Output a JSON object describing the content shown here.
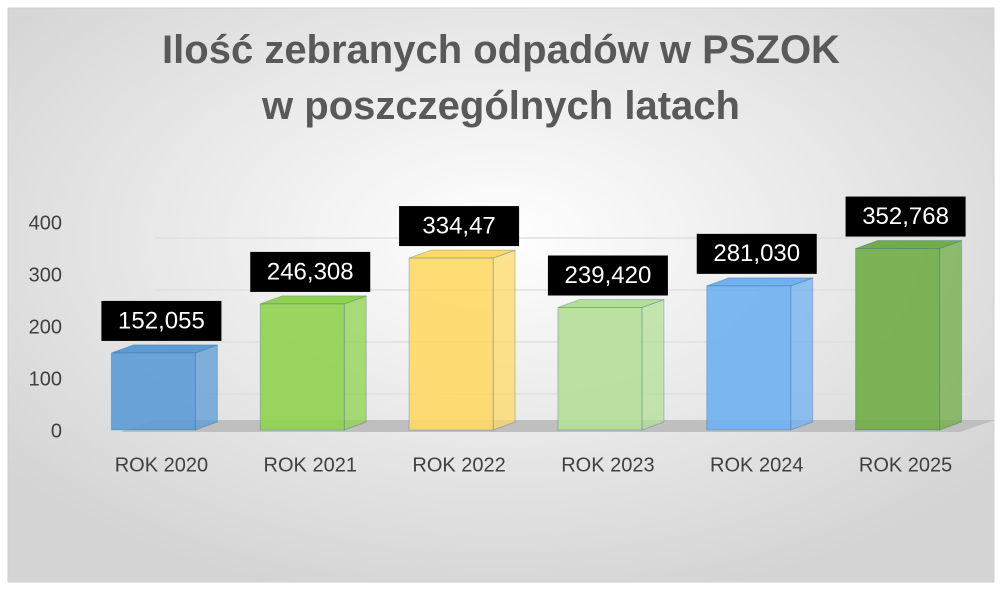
{
  "chart_data": {
    "type": "bar3d",
    "title": "Ilość zebranych odpadów w PSZOK w poszczególnych latach",
    "categories": [
      "ROK 2020",
      "ROK 2021",
      "ROK 2022",
      "ROK 2023",
      "ROK 2024",
      "ROK 2025"
    ],
    "values": [
      152.055,
      246.308,
      334.47,
      239.42,
      281.03,
      352.768
    ],
    "value_labels": [
      "152,055",
      "246,308",
      "334,47",
      "239,420",
      "281,030",
      "352,768"
    ],
    "colors": [
      "#5b9bd5",
      "#8fd14f",
      "#ffd966",
      "#b4df96",
      "#6eb0f0",
      "#70ad47"
    ],
    "ylim": [
      0,
      400
    ],
    "yticks": [
      0,
      100,
      200,
      300,
      400
    ],
    "grid": true
  }
}
